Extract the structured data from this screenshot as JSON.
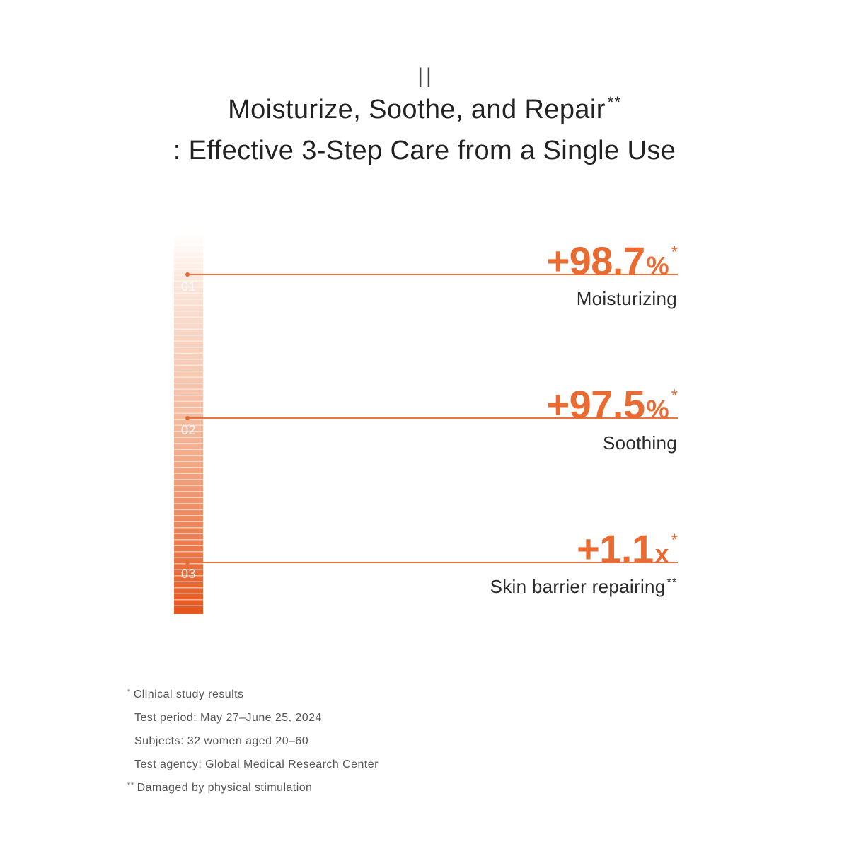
{
  "header": {
    "divider_mark": "||",
    "title_line1": "Moisturize, Soothe, and Repair",
    "title_line1_mark": "**",
    "title_line2": ": Effective 3-Step Care from a Single Use"
  },
  "stats": [
    {
      "step": "01",
      "value": "+98.7",
      "unit": "%",
      "mark": "*",
      "label": "Moisturizing"
    },
    {
      "step": "02",
      "value": "+97.5",
      "unit": "%",
      "mark": "*",
      "label": "Soothing"
    },
    {
      "step": "03",
      "value": "+1.1",
      "unit": "x",
      "mark": "*",
      "label": "Skin barrier repairing",
      "label_mark": "**"
    }
  ],
  "footnotes": {
    "clinical_mark": "*",
    "clinical_title": "Clinical study results",
    "clinical_details": [
      "Test period: May 27–June 25, 2024",
      "Subjects: 32 women aged 20–60",
      "Test agency: Global Medical Research Center"
    ],
    "damaged_mark": "**",
    "damaged_text": "Damaged by physical stimulation"
  },
  "colors": {
    "accent": "#e96b31",
    "line": "#ec7240",
    "text": "#2a2a2a",
    "footnote": "#555555",
    "bar_top": "#fce7dd",
    "bar_mid": "#f3b293",
    "bar_bottom": "#e5561e"
  }
}
